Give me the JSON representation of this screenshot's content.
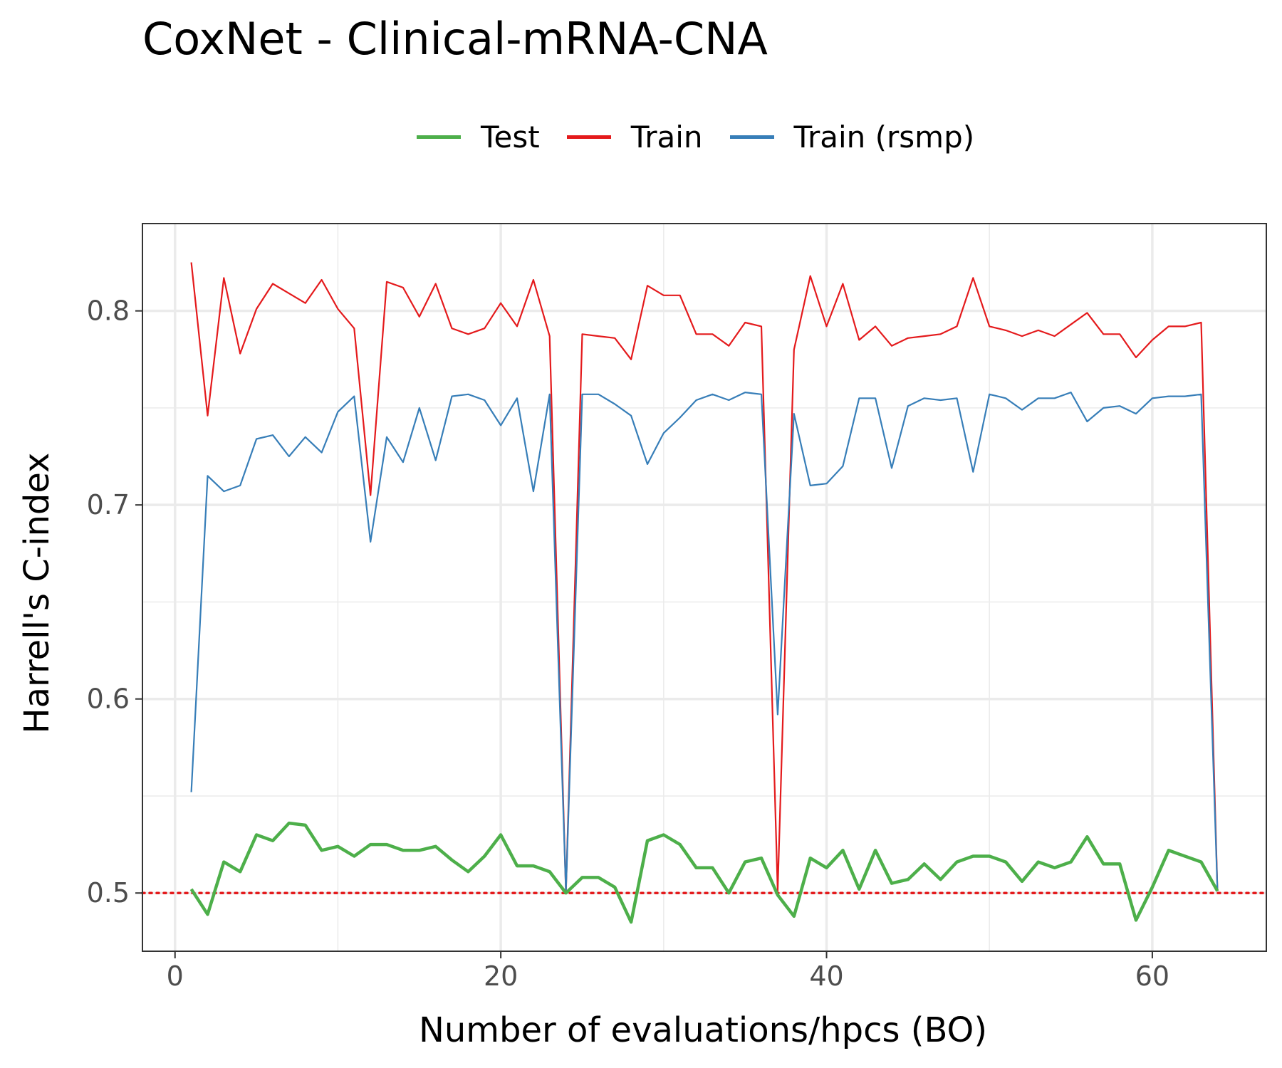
{
  "chart_data": {
    "type": "line",
    "title": "CoxNet - Clinical-mRNA-CNA",
    "xlabel": "Number of evaluations/hpcs (BO)",
    "ylabel": "Harrell's C-index",
    "xlim": [
      -2,
      67
    ],
    "ylim": [
      0.47,
      0.845
    ],
    "x_ticks": [
      0,
      20,
      40,
      60
    ],
    "x_tick_labels": [
      "0",
      "20",
      "40",
      "60"
    ],
    "y_ticks": [
      0.5,
      0.6,
      0.7,
      0.8
    ],
    "y_tick_labels": [
      "0.5",
      "0.6",
      "0.7",
      "0.8"
    ],
    "grid": true,
    "legend_position": "top",
    "reference_line": {
      "y": 0.5,
      "color": "#e41a1c",
      "style": "dotted"
    },
    "x": [
      1,
      2,
      3,
      4,
      5,
      6,
      7,
      8,
      9,
      10,
      11,
      12,
      13,
      14,
      15,
      16,
      17,
      18,
      19,
      20,
      21,
      22,
      23,
      24,
      25,
      26,
      27,
      28,
      29,
      30,
      31,
      32,
      33,
      34,
      35,
      36,
      37,
      38,
      39,
      40,
      41,
      42,
      43,
      44,
      45,
      46,
      47,
      48,
      49,
      50,
      51,
      52,
      53,
      54,
      55,
      56,
      57,
      58,
      59,
      60,
      61,
      62,
      63,
      64
    ],
    "series": [
      {
        "name": "Test",
        "color": "#4daf4a",
        "values": [
          0.502,
          0.489,
          0.516,
          0.511,
          0.53,
          0.527,
          0.536,
          0.535,
          0.522,
          0.524,
          0.519,
          0.525,
          0.525,
          0.522,
          0.522,
          0.524,
          0.517,
          0.511,
          0.519,
          0.53,
          0.514,
          0.514,
          0.511,
          0.5,
          0.508,
          0.508,
          0.503,
          0.485,
          0.527,
          0.53,
          0.525,
          0.513,
          0.513,
          0.5,
          0.516,
          0.518,
          0.499,
          0.488,
          0.518,
          0.513,
          0.522,
          0.502,
          0.522,
          0.505,
          0.507,
          0.515,
          0.507,
          0.516,
          0.519,
          0.519,
          0.516,
          0.506,
          0.516,
          0.513,
          0.516,
          0.529,
          0.515,
          0.515,
          0.486,
          0.503,
          0.522,
          0.519,
          0.516,
          0.501
        ]
      },
      {
        "name": "Train",
        "color": "#e41a1c",
        "values": [
          0.825,
          0.746,
          0.817,
          0.778,
          0.801,
          0.814,
          0.809,
          0.804,
          0.816,
          0.801,
          0.791,
          0.705,
          0.815,
          0.812,
          0.797,
          0.814,
          0.791,
          0.788,
          0.791,
          0.804,
          0.792,
          0.816,
          0.787,
          0.5,
          0.788,
          0.787,
          0.786,
          0.775,
          0.813,
          0.808,
          0.808,
          0.788,
          0.788,
          0.782,
          0.794,
          0.792,
          0.501,
          0.78,
          0.818,
          0.792,
          0.814,
          0.785,
          0.792,
          0.782,
          0.786,
          0.787,
          0.788,
          0.792,
          0.817,
          0.792,
          0.79,
          0.787,
          0.79,
          0.787,
          0.793,
          0.799,
          0.788,
          0.788,
          0.776,
          0.785,
          0.792,
          0.792,
          0.794,
          0.501
        ]
      },
      {
        "name": "Train (rsmp)",
        "color": "#377eb8",
        "values": [
          0.552,
          0.715,
          0.707,
          0.71,
          0.734,
          0.736,
          0.725,
          0.735,
          0.727,
          0.748,
          0.756,
          0.681,
          0.735,
          0.722,
          0.75,
          0.723,
          0.756,
          0.757,
          0.754,
          0.741,
          0.755,
          0.707,
          0.757,
          0.501,
          0.757,
          0.757,
          0.752,
          0.746,
          0.721,
          0.737,
          0.745,
          0.754,
          0.757,
          0.754,
          0.758,
          0.757,
          0.592,
          0.747,
          0.71,
          0.711,
          0.72,
          0.755,
          0.755,
          0.719,
          0.751,
          0.755,
          0.754,
          0.755,
          0.717,
          0.757,
          0.755,
          0.749,
          0.755,
          0.755,
          0.758,
          0.743,
          0.75,
          0.751,
          0.747,
          0.755,
          0.756,
          0.756,
          0.757,
          0.501
        ]
      }
    ]
  }
}
